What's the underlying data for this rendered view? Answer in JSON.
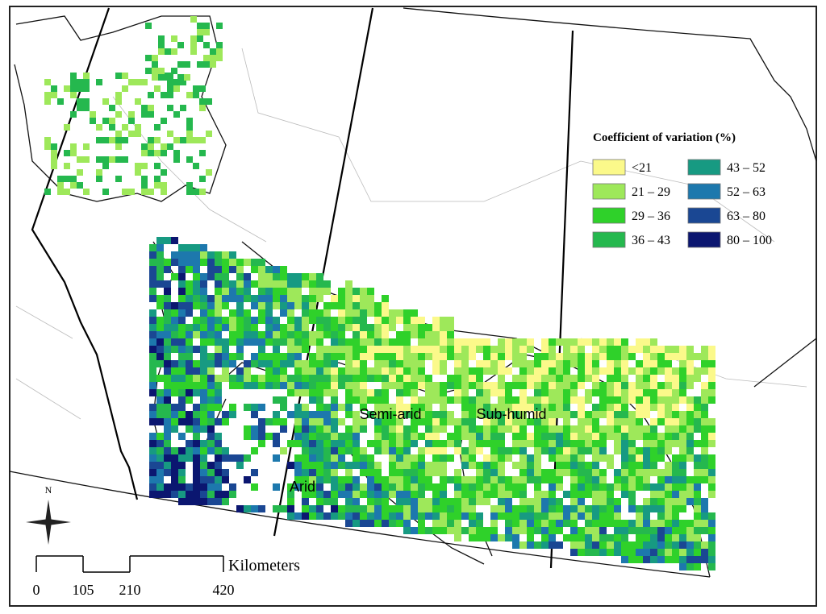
{
  "legend": {
    "title": "Coefficient of variation (%)",
    "items": [
      {
        "label": "<21",
        "color": "#fbf98a"
      },
      {
        "label": "21 – 29",
        "color": "#9ee85a"
      },
      {
        "label": "29 – 36",
        "color": "#2fd12a"
      },
      {
        "label": "36 – 43",
        "color": "#25b84e"
      },
      {
        "label": "43 – 52",
        "color": "#179a82"
      },
      {
        "label": "52 – 63",
        "color": "#1d78ad"
      },
      {
        "label": "63 – 80",
        "color": "#1a4793"
      },
      {
        "label": "80 – 100",
        "color": "#0b1670"
      }
    ]
  },
  "regions": [
    "Arid",
    "Semi-arid",
    "Sub-humid"
  ],
  "north": "N",
  "scale": {
    "unit": "Kilometers",
    "ticks": [
      0,
      105,
      210,
      420
    ]
  }
}
